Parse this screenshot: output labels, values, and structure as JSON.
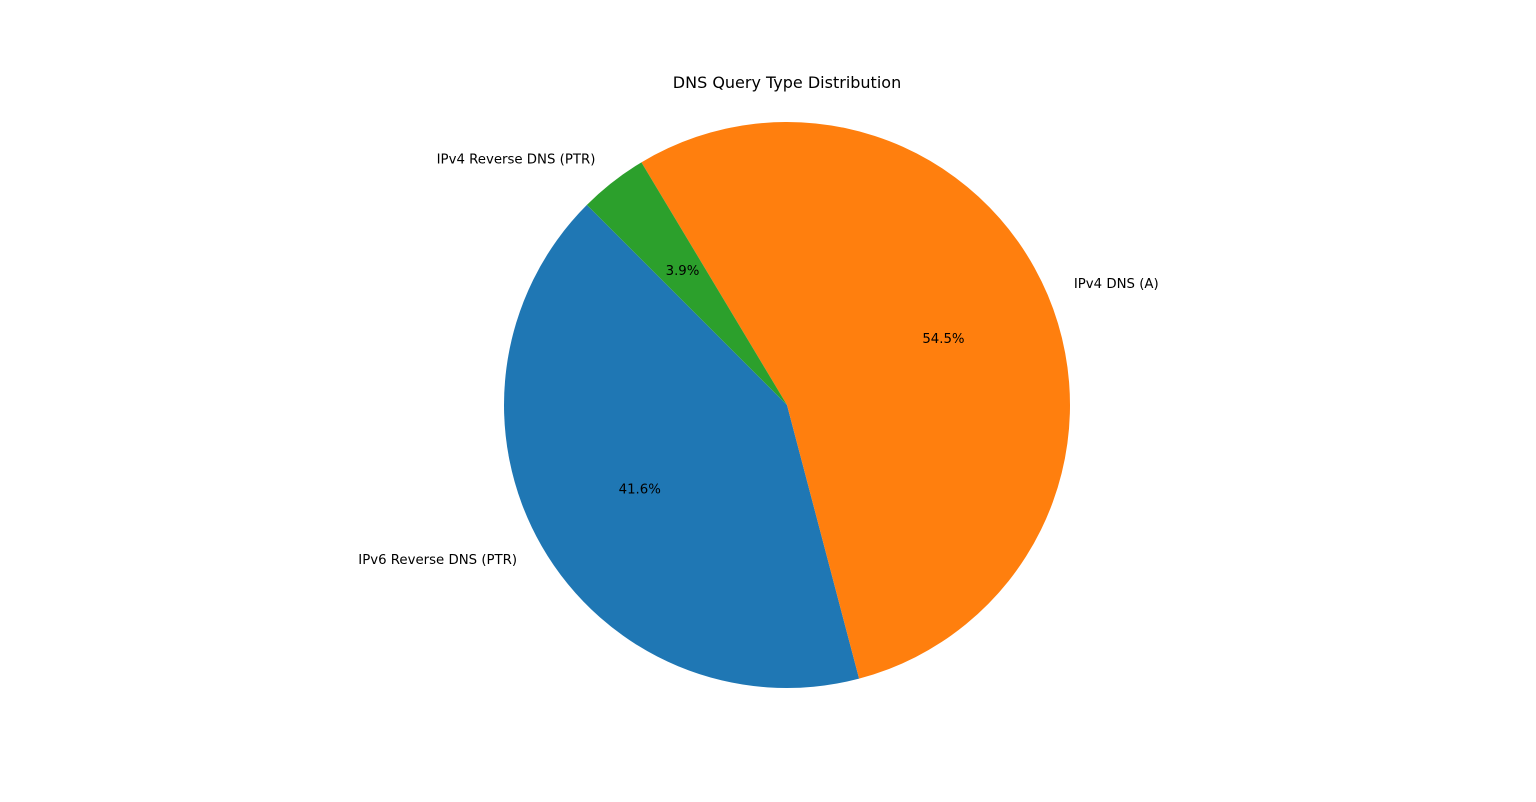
{
  "chart_data": {
    "type": "pie",
    "title": "DNS Query Type Distribution",
    "start_angle_deg": 135,
    "direction": "counterclockwise",
    "slices": [
      {
        "label": "IPv6 Reverse DNS (PTR)",
        "value": 41.6,
        "pct_label": "41.6%",
        "color": "#1f77b4"
      },
      {
        "label": "IPv4 DNS (A)",
        "value": 54.5,
        "pct_label": "54.5%",
        "color": "#ff7f0e"
      },
      {
        "label": "IPv4 Reverse DNS (PTR)",
        "value": 3.9,
        "pct_label": "3.9%",
        "color": "#2ca02c"
      }
    ]
  }
}
